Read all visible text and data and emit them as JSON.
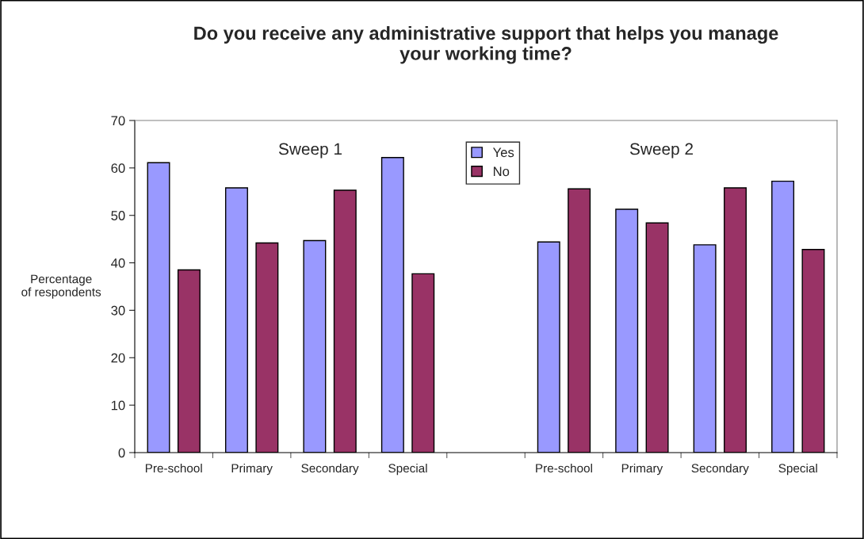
{
  "chart_data": {
    "type": "bar",
    "title": "Do you receive any administrative support that helps you manage\nyour working time?",
    "ylabel": "Percentage\nof respondents",
    "categories": [
      "Pre-school",
      "Primary",
      "Secondary",
      "Special",
      null,
      "Pre-school",
      "Primary",
      "Secondary",
      "Special"
    ],
    "series": [
      {
        "name": "Yes",
        "color": "#9999ff",
        "values": [
          61.1,
          55.8,
          44.7,
          62.2,
          null,
          44.4,
          51.3,
          43.8,
          57.2
        ]
      },
      {
        "name": "No",
        "color": "#993366",
        "values": [
          38.5,
          44.2,
          55.3,
          37.7,
          null,
          55.6,
          48.4,
          55.8,
          42.8
        ]
      }
    ],
    "annotations": [
      "Sweep 1",
      "Sweep 2"
    ],
    "ylim": [
      0,
      70
    ],
    "yticks": [
      0,
      10,
      20,
      30,
      40,
      50,
      60,
      70
    ],
    "legend": "top",
    "grid": false
  }
}
